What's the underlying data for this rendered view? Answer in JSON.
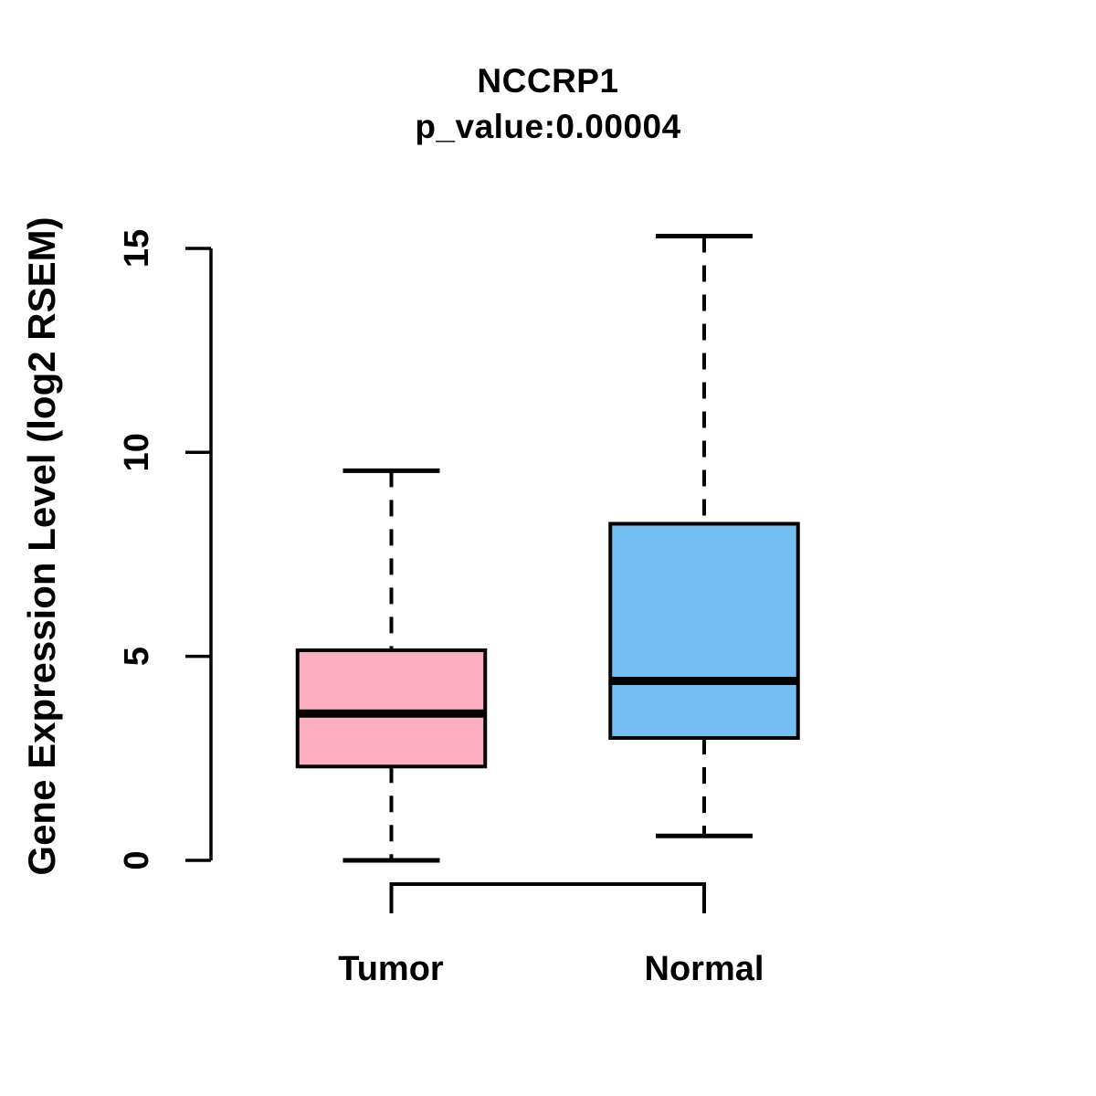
{
  "chart_data": {
    "type": "boxplot",
    "title": "NCCRP1",
    "subtitle": "p_value:0.00004",
    "gene": "NCCRP1",
    "p_value": 4e-05,
    "ylabel": "Gene Expression Level (log2 RSEM)",
    "xlabel": "",
    "ylim": [
      0,
      15.4
    ],
    "yticks": [
      0,
      5,
      10,
      15
    ],
    "categories": [
      "Tumor",
      "Normal"
    ],
    "series": [
      {
        "name": "Tumor",
        "color": "#FBAFC1",
        "whisker_low": 0.0,
        "q1": 2.3,
        "median": 3.6,
        "q3": 5.15,
        "whisker_high": 9.55
      },
      {
        "name": "Normal",
        "color": "#73BFF3",
        "whisker_low": 0.6,
        "q1": 3.0,
        "median": 4.4,
        "q3": 8.25,
        "whisker_high": 15.3
      }
    ],
    "grid": false,
    "legend": "none",
    "box_border_color": "#000000",
    "whisker_style": "dashed",
    "axis_color": "#000000"
  }
}
